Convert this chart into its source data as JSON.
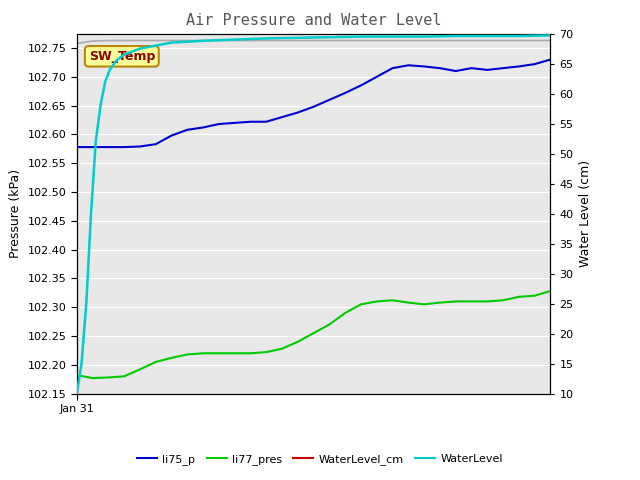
{
  "title": "Air Pressure and Water Level",
  "ylabel_left": "Pressure (kPa)",
  "ylabel_right": "Water Level (cm)",
  "ylim_left": [
    102.15,
    102.775
  ],
  "ylim_right": [
    10,
    70
  ],
  "yticks_left": [
    102.15,
    102.2,
    102.25,
    102.3,
    102.35,
    102.4,
    102.45,
    102.5,
    102.55,
    102.6,
    102.65,
    102.7,
    102.75
  ],
  "yticks_right": [
    10,
    15,
    20,
    25,
    30,
    35,
    40,
    45,
    50,
    55,
    60,
    65,
    70
  ],
  "x_label": "Jan 31",
  "annotation_text": "SW_Temp",
  "annotation_color": "#8B0000",
  "annotation_bg": "#FFFF99",
  "annotation_border": "#B8860B",
  "plot_bg_color": "#E8E8E8",
  "fig_bg_color": "#FFFFFF",
  "li75_p_color": "#0000CD",
  "li77_pres_color": "#00CC00",
  "waterlevel_cm_color": "#CC0000",
  "waterlevel_color": "#00CCCC",
  "gray_line_color": "#AAAAAA",
  "grid_color": "#FFFFFF",
  "li75_p_x": [
    0,
    1,
    2,
    3,
    4,
    5,
    6,
    7,
    8,
    9,
    10,
    11,
    12,
    13,
    14,
    15,
    16,
    17,
    18,
    19,
    20,
    21,
    22,
    23,
    24,
    25,
    26,
    27,
    28,
    29,
    30
  ],
  "li75_p_y": [
    102.578,
    102.578,
    102.578,
    102.578,
    102.579,
    102.583,
    102.598,
    102.608,
    102.612,
    102.618,
    102.62,
    102.622,
    102.622,
    102.63,
    102.638,
    102.648,
    102.66,
    102.672,
    102.685,
    102.7,
    102.715,
    102.72,
    102.718,
    102.715,
    102.71,
    102.715,
    102.712,
    102.715,
    102.718,
    102.722,
    102.73
  ],
  "li77_pres_x": [
    0,
    1,
    2,
    3,
    4,
    5,
    6,
    7,
    8,
    9,
    10,
    11,
    12,
    13,
    14,
    15,
    16,
    17,
    18,
    19,
    20,
    21,
    22,
    23,
    24,
    25,
    26,
    27,
    28,
    29,
    30
  ],
  "li77_pres_y": [
    102.182,
    102.177,
    102.178,
    102.18,
    102.192,
    102.205,
    102.212,
    102.218,
    102.22,
    102.22,
    102.22,
    102.22,
    102.222,
    102.228,
    102.24,
    102.255,
    102.27,
    102.29,
    102.305,
    102.31,
    102.312,
    102.308,
    102.305,
    102.308,
    102.31,
    102.31,
    102.31,
    102.312,
    102.318,
    102.32,
    102.328
  ],
  "waterlevel_x": [
    0,
    0.3,
    0.6,
    0.9,
    1.2,
    1.5,
    1.8,
    2.1,
    2.5,
    3.0,
    4.0,
    5.0,
    6.0,
    8.0,
    10.0,
    12.0,
    14.0,
    16.0,
    18.0,
    20.0,
    22.0,
    24.0,
    26.0,
    28.0,
    30.0
  ],
  "waterlevel_y": [
    10.0,
    15.0,
    25.0,
    40.0,
    52.0,
    58.0,
    62.0,
    64.0,
    65.5,
    66.5,
    67.5,
    68.0,
    68.5,
    68.8,
    69.0,
    69.2,
    69.3,
    69.4,
    69.5,
    69.5,
    69.5,
    69.6,
    69.6,
    69.6,
    69.7
  ],
  "gray_line_x": [
    0,
    1,
    2,
    3,
    4,
    5,
    6,
    7,
    8,
    9,
    10,
    11,
    12,
    13,
    14,
    15,
    16,
    17,
    18,
    19,
    20,
    21,
    22,
    23,
    24,
    25,
    26,
    27,
    28,
    29,
    30
  ],
  "gray_line_y": [
    102.758,
    102.762,
    102.763,
    102.763,
    102.763,
    102.763,
    102.763,
    102.763,
    102.763,
    102.763,
    102.763,
    102.763,
    102.763,
    102.763,
    102.763,
    102.763,
    102.763,
    102.763,
    102.763,
    102.763,
    102.763,
    102.763,
    102.763,
    102.763,
    102.763,
    102.763,
    102.763,
    102.763,
    102.763,
    102.763,
    102.763
  ]
}
